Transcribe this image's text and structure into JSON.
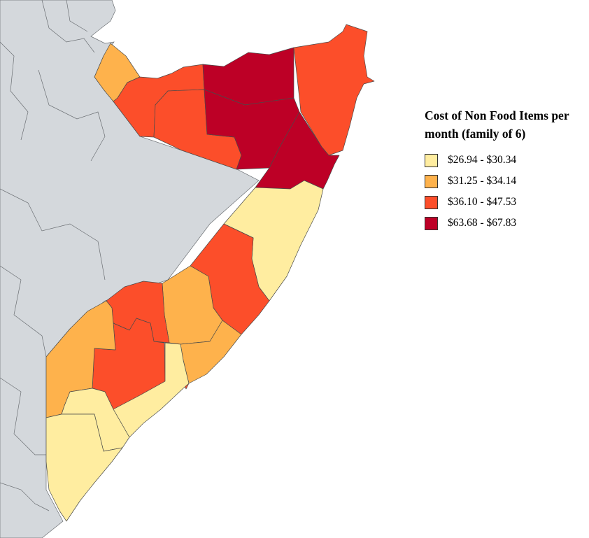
{
  "legend": {
    "title": "Cost of Non Food Items per month (family of 6)",
    "classes": [
      {
        "label": "$26.94 - $30.34",
        "color": "#ffeda0"
      },
      {
        "label": "$31.25 - $34.14",
        "color": "#feb24c"
      },
      {
        "label": "$36.10 - $47.53",
        "color": "#fc4e2a"
      },
      {
        "label": "$63.68 - $67.83",
        "color": "#bd0026"
      }
    ]
  },
  "map": {
    "land_color": "#d4d8dc",
    "background_color": "#ffffff"
  }
}
